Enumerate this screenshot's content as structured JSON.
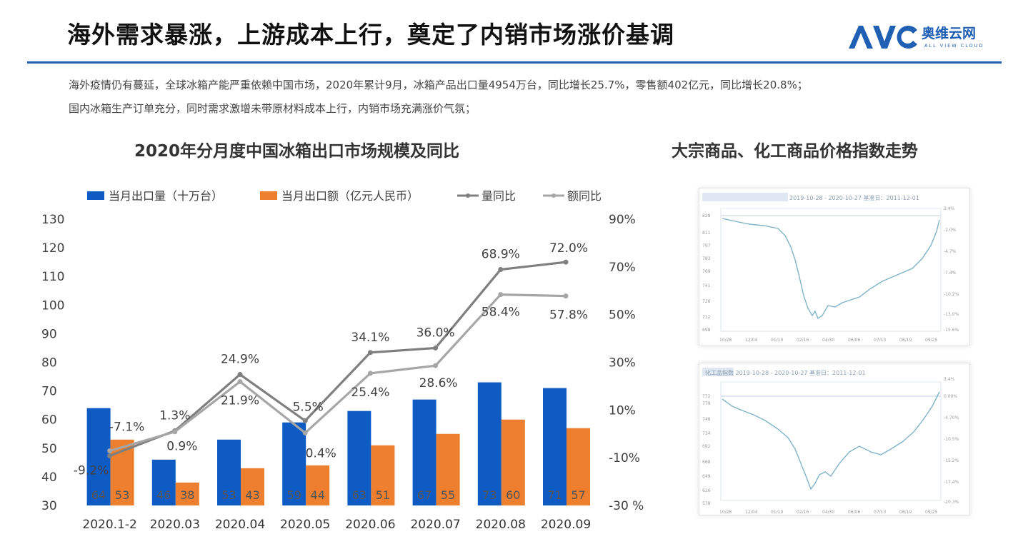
{
  "header": {
    "title": "海外需求暴涨，上游成本上行，奠定了内销市场涨价基调",
    "logo_text": "AVC",
    "logo_cn": "奥维云网",
    "logo_en": "ALL VIEW CLOUD"
  },
  "description": {
    "line1": "海外疫情仍有蔓延，全球冰箱产能严重依赖中国市场，2020年累计9月，冰箱产品出口量4954万台，同比增长25.7%，零售额402亿元，同比增长20.8%；",
    "line2": "国内冰箱生产订单充分，同时需求激增未带原材料成本上行，内销市场充满涨价气氛；"
  },
  "right_title": "大宗商品、化工商品价格指数走势",
  "thumbnails": [
    {
      "caption": "2019-10-28 - 2020-10-27  基准日：2011-12-01"
    },
    {
      "caption": "化工品指数  2019-10-28 - 2020-10-27  基准日：2011-12-01"
    }
  ],
  "colors": {
    "blue": "#0e5bc4",
    "orange": "#ee7f2e",
    "dark_line": "#7f7f7f",
    "light_line": "#a6a6a6",
    "rule": "#1f5fb4",
    "thumb_line": "#7fb3c9"
  },
  "chart_data": {
    "type": "bar",
    "title": "2020年分月度中国冰箱出口市场规模及同比",
    "categories": [
      "2020.1-2",
      "2020.03",
      "2020.04",
      "2020.05",
      "2020.06",
      "2020.07",
      "2020.08",
      "2020.09"
    ],
    "series": [
      {
        "name": "当月出口量（十万台）",
        "kind": "bar",
        "axis": "left",
        "values": [
          64,
          46,
          53,
          59,
          63,
          67,
          73,
          71
        ]
      },
      {
        "name": "当月出口额（亿元人民币）",
        "kind": "bar",
        "axis": "left",
        "values": [
          53,
          38,
          43,
          44,
          51,
          55,
          60,
          57
        ]
      },
      {
        "name": "量同比",
        "kind": "line",
        "axis": "right",
        "values": [
          -9.2,
          1.3,
          24.9,
          5.5,
          34.1,
          36.0,
          68.9,
          72.0
        ],
        "labels": [
          "-9.2%",
          "1.3%",
          "24.9%",
          "5.5%",
          "34.1%",
          "36.0%",
          "68.9%",
          "72.0%"
        ]
      },
      {
        "name": "额同比",
        "kind": "line",
        "axis": "right",
        "values": [
          -7.1,
          0.9,
          21.9,
          0.4,
          25.4,
          28.6,
          58.4,
          57.8
        ],
        "labels": [
          "-7.1%",
          "0.9%",
          "21.9%",
          "0.4%",
          "25.4%",
          "28.6%",
          "58.4%",
          "57.8%"
        ]
      }
    ],
    "left_axis": {
      "ticks": [
        "130",
        "120",
        "110",
        "100",
        "90",
        "80",
        "70",
        "60",
        "50",
        "40",
        "30"
      ],
      "ylim": [
        30,
        130
      ]
    },
    "right_axis": {
      "ticks": [
        "90%",
        "70%",
        "50%",
        "30%",
        "10%",
        "-10%",
        "-30 %"
      ],
      "ylim": [
        -30,
        90
      ]
    },
    "legend_position": "top",
    "grid": false
  }
}
